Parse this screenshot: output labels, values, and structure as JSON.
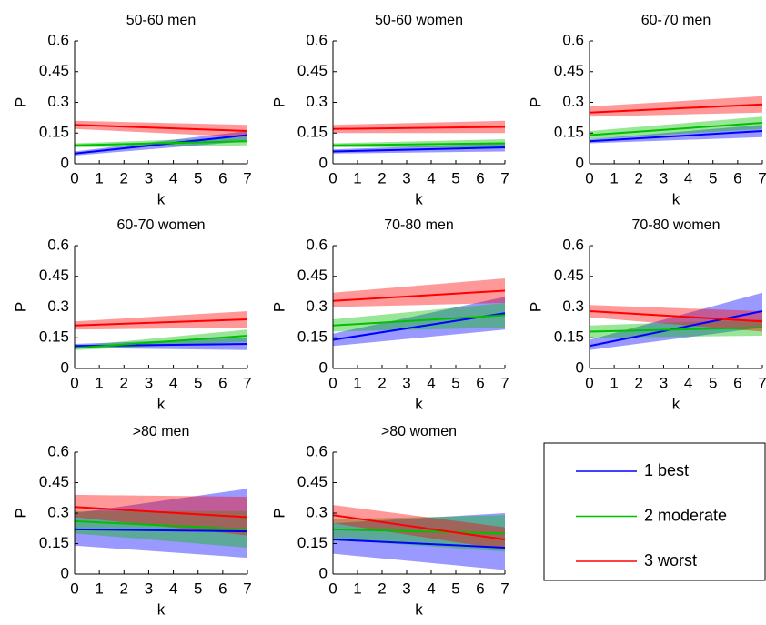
{
  "legend": {
    "entries": [
      {
        "name": "1 best",
        "color": "#0000ff"
      },
      {
        "name": "2 moderate",
        "color": "#00c000"
      },
      {
        "name": "3 worst",
        "color": "#ff0000"
      }
    ]
  },
  "chart_data": [
    {
      "type": "line",
      "title": "50-60  men",
      "x_label": "k",
      "y_label": "P",
      "x": [
        0,
        7
      ],
      "xlim": [
        0,
        7
      ],
      "xticks": [
        0,
        1,
        2,
        3,
        4,
        5,
        6,
        7
      ],
      "ylim": [
        0,
        0.6
      ],
      "yticks": [
        0,
        0.15,
        0.3,
        0.45,
        0.6
      ],
      "series": [
        {
          "values": [
            0.05,
            0.14
          ],
          "lower": [
            0.04,
            0.11
          ],
          "upper": [
            0.06,
            0.16
          ]
        },
        {
          "values": [
            0.09,
            0.11
          ],
          "lower": [
            0.08,
            0.09
          ],
          "upper": [
            0.1,
            0.13
          ]
        },
        {
          "values": [
            0.19,
            0.16
          ],
          "lower": [
            0.17,
            0.13
          ],
          "upper": [
            0.21,
            0.19
          ]
        }
      ]
    },
    {
      "type": "line",
      "title": "50-60  women",
      "x_label": "k",
      "y_label": "P",
      "x": [
        0,
        7
      ],
      "xlim": [
        0,
        7
      ],
      "xticks": [
        0,
        1,
        2,
        3,
        4,
        5,
        6,
        7
      ],
      "ylim": [
        0,
        0.6
      ],
      "yticks": [
        0,
        0.15,
        0.3,
        0.45,
        0.6
      ],
      "series": [
        {
          "values": [
            0.06,
            0.08
          ],
          "lower": [
            0.05,
            0.06
          ],
          "upper": [
            0.07,
            0.1
          ]
        },
        {
          "values": [
            0.09,
            0.1
          ],
          "lower": [
            0.08,
            0.08
          ],
          "upper": [
            0.1,
            0.12
          ]
        },
        {
          "values": [
            0.17,
            0.18
          ],
          "lower": [
            0.15,
            0.15
          ],
          "upper": [
            0.19,
            0.21
          ]
        }
      ]
    },
    {
      "type": "line",
      "title": "60-70  men",
      "x_label": "k",
      "y_label": "P",
      "x": [
        0,
        7
      ],
      "xlim": [
        0,
        7
      ],
      "xticks": [
        0,
        1,
        2,
        3,
        4,
        5,
        6,
        7
      ],
      "ylim": [
        0,
        0.6
      ],
      "yticks": [
        0,
        0.15,
        0.3,
        0.45,
        0.6
      ],
      "series": [
        {
          "values": [
            0.11,
            0.16
          ],
          "lower": [
            0.1,
            0.13
          ],
          "upper": [
            0.12,
            0.19
          ]
        },
        {
          "values": [
            0.14,
            0.2
          ],
          "lower": [
            0.12,
            0.17
          ],
          "upper": [
            0.16,
            0.23
          ]
        },
        {
          "values": [
            0.25,
            0.29
          ],
          "lower": [
            0.23,
            0.25
          ],
          "upper": [
            0.28,
            0.33
          ]
        }
      ]
    },
    {
      "type": "line",
      "title": "60-70  women",
      "x_label": "k",
      "y_label": "P",
      "x": [
        0,
        7
      ],
      "xlim": [
        0,
        7
      ],
      "xticks": [
        0,
        1,
        2,
        3,
        4,
        5,
        6,
        7
      ],
      "ylim": [
        0,
        0.6
      ],
      "yticks": [
        0,
        0.15,
        0.3,
        0.45,
        0.6
      ],
      "series": [
        {
          "values": [
            0.11,
            0.12
          ],
          "lower": [
            0.1,
            0.09
          ],
          "upper": [
            0.12,
            0.15
          ]
        },
        {
          "values": [
            0.1,
            0.16
          ],
          "lower": [
            0.09,
            0.13
          ],
          "upper": [
            0.11,
            0.19
          ]
        },
        {
          "values": [
            0.21,
            0.24
          ],
          "lower": [
            0.19,
            0.2
          ],
          "upper": [
            0.23,
            0.28
          ]
        }
      ]
    },
    {
      "type": "line",
      "title": "70-80  men",
      "x_label": "k",
      "y_label": "P",
      "x": [
        0,
        7
      ],
      "xlim": [
        0,
        7
      ],
      "xticks": [
        0,
        1,
        2,
        3,
        4,
        5,
        6,
        7
      ],
      "ylim": [
        0,
        0.6
      ],
      "yticks": [
        0,
        0.15,
        0.3,
        0.45,
        0.6
      ],
      "series": [
        {
          "values": [
            0.14,
            0.27
          ],
          "lower": [
            0.11,
            0.19
          ],
          "upper": [
            0.17,
            0.35
          ]
        },
        {
          "values": [
            0.21,
            0.26
          ],
          "lower": [
            0.18,
            0.2
          ],
          "upper": [
            0.24,
            0.32
          ]
        },
        {
          "values": [
            0.33,
            0.38
          ],
          "lower": [
            0.3,
            0.32
          ],
          "upper": [
            0.37,
            0.44
          ]
        }
      ]
    },
    {
      "type": "line",
      "title": "70-80  women",
      "x_label": "k",
      "y_label": "P",
      "x": [
        0,
        7
      ],
      "xlim": [
        0,
        7
      ],
      "xticks": [
        0,
        1,
        2,
        3,
        4,
        5,
        6,
        7
      ],
      "ylim": [
        0,
        0.6
      ],
      "yticks": [
        0,
        0.15,
        0.3,
        0.45,
        0.6
      ],
      "series": [
        {
          "values": [
            0.11,
            0.28
          ],
          "lower": [
            0.09,
            0.2
          ],
          "upper": [
            0.14,
            0.37
          ]
        },
        {
          "values": [
            0.18,
            0.2
          ],
          "lower": [
            0.15,
            0.16
          ],
          "upper": [
            0.21,
            0.24
          ]
        },
        {
          "values": [
            0.28,
            0.23
          ],
          "lower": [
            0.25,
            0.18
          ],
          "upper": [
            0.31,
            0.28
          ]
        }
      ]
    },
    {
      "type": "line",
      "title": ">80  men",
      "x_label": "k",
      "y_label": "P",
      "x": [
        0,
        7
      ],
      "xlim": [
        0,
        7
      ],
      "xticks": [
        0,
        1,
        2,
        3,
        4,
        5,
        6,
        7
      ],
      "ylim": [
        0,
        0.6
      ],
      "yticks": [
        0,
        0.15,
        0.3,
        0.45,
        0.6
      ],
      "series": [
        {
          "values": [
            0.22,
            0.21
          ],
          "lower": [
            0.14,
            0.08
          ],
          "upper": [
            0.3,
            0.42
          ]
        },
        {
          "values": [
            0.26,
            0.22
          ],
          "lower": [
            0.2,
            0.13
          ],
          "upper": [
            0.31,
            0.31
          ]
        },
        {
          "values": [
            0.33,
            0.28
          ],
          "lower": [
            0.28,
            0.19
          ],
          "upper": [
            0.39,
            0.38
          ]
        }
      ]
    },
    {
      "type": "line",
      "title": ">80  women",
      "x_label": "k",
      "y_label": "P",
      "x": [
        0,
        7
      ],
      "xlim": [
        0,
        7
      ],
      "xticks": [
        0,
        1,
        2,
        3,
        4,
        5,
        6,
        7
      ],
      "ylim": [
        0,
        0.6
      ],
      "yticks": [
        0,
        0.15,
        0.3,
        0.45,
        0.6
      ],
      "series": [
        {
          "values": [
            0.17,
            0.13
          ],
          "lower": [
            0.1,
            0.02
          ],
          "upper": [
            0.25,
            0.3
          ]
        },
        {
          "values": [
            0.22,
            0.2
          ],
          "lower": [
            0.17,
            0.11
          ],
          "upper": [
            0.27,
            0.29
          ]
        },
        {
          "values": [
            0.29,
            0.17
          ],
          "lower": [
            0.25,
            0.12
          ],
          "upper": [
            0.34,
            0.23
          ]
        }
      ]
    }
  ]
}
